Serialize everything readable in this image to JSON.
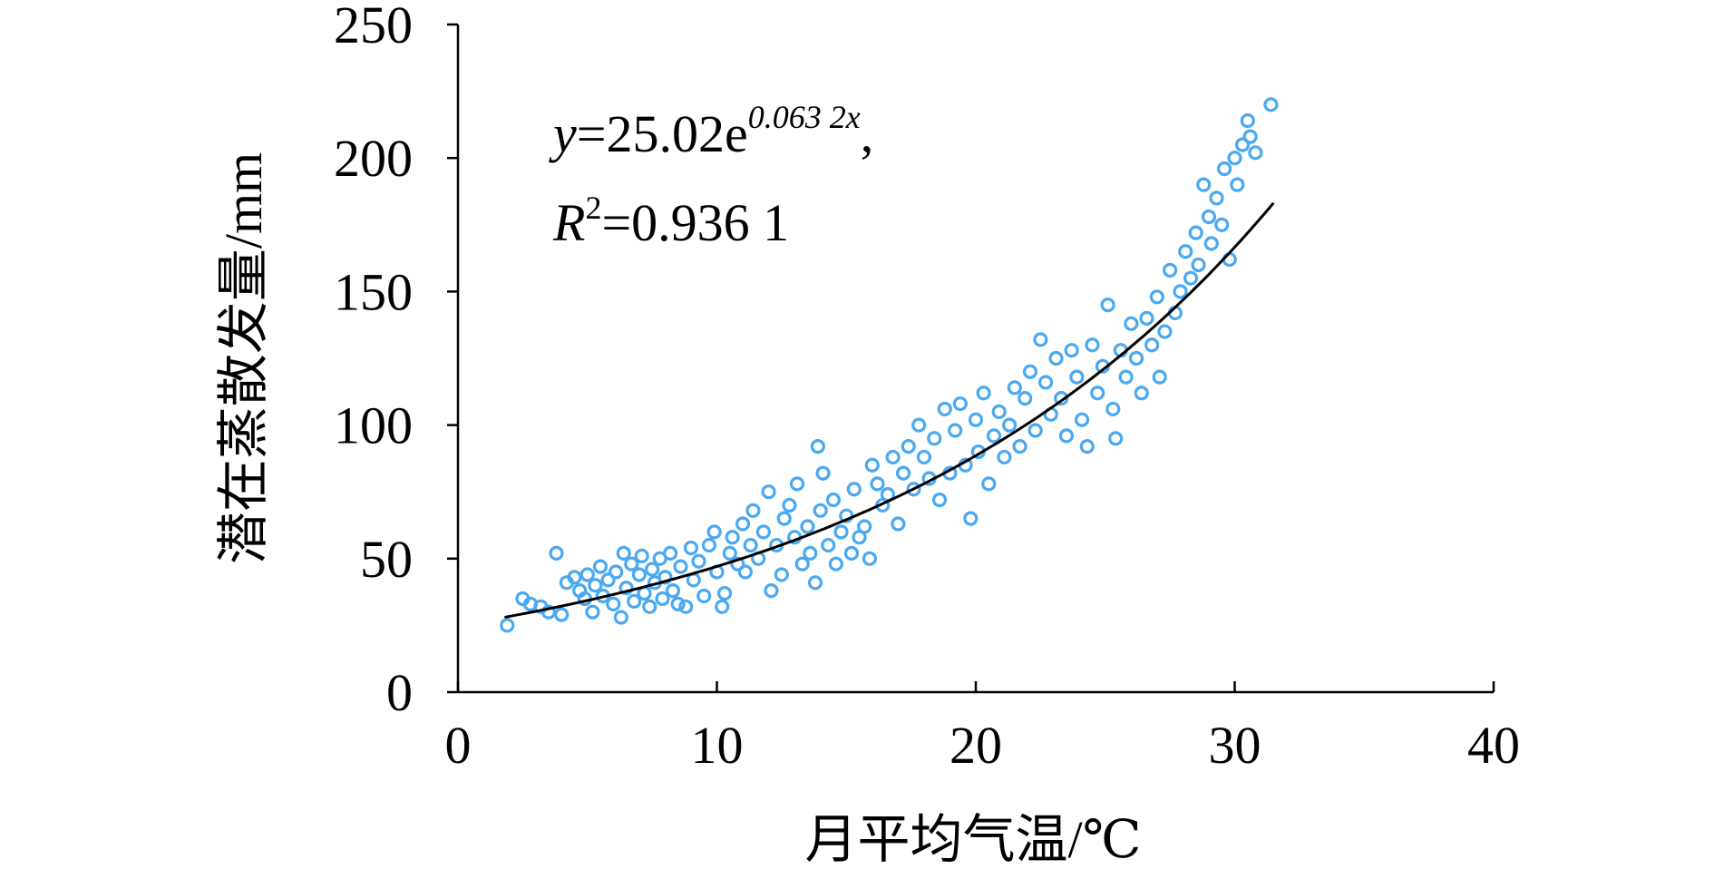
{
  "chart_data": {
    "type": "scatter",
    "title": "",
    "xlabel": "月平均气温/℃",
    "ylabel": "潜在蒸散发量/mm",
    "xlim": [
      0,
      40
    ],
    "ylim": [
      0,
      250
    ],
    "xticks": [
      "0",
      "10",
      "20",
      "30",
      "40"
    ],
    "yticks": [
      "0",
      "50",
      "100",
      "150",
      "200",
      "250"
    ],
    "grid": false,
    "legend": "none",
    "point_color": "#4aa9f0",
    "line_color": "#000000",
    "annotation": {
      "eq_y": "y",
      "eq_main": "=25.02e",
      "eq_exp": "0.063 2x",
      "eq_comma": ",",
      "r_letter": "R",
      "r_sup": "2",
      "r_value": "=0.936 1"
    },
    "fit": {
      "model": "exponential",
      "a": 25.02,
      "b": 0.0632,
      "x_range": [
        1.8,
        31.5
      ]
    },
    "series": [
      {
        "type": "scatter",
        "points": [
          [
            1.9,
            25
          ],
          [
            2.5,
            35
          ],
          [
            2.8,
            33
          ],
          [
            3.2,
            32
          ],
          [
            3.5,
            30
          ],
          [
            3.8,
            52
          ],
          [
            4.0,
            29
          ],
          [
            4.2,
            41
          ],
          [
            4.5,
            43
          ],
          [
            4.7,
            38
          ],
          [
            4.9,
            35
          ],
          [
            5.0,
            44
          ],
          [
            5.2,
            30
          ],
          [
            5.3,
            40
          ],
          [
            5.5,
            47
          ],
          [
            5.6,
            36
          ],
          [
            5.8,
            42
          ],
          [
            6.0,
            33
          ],
          [
            6.1,
            45
          ],
          [
            6.3,
            28
          ],
          [
            6.4,
            52
          ],
          [
            6.5,
            39
          ],
          [
            6.7,
            48
          ],
          [
            6.8,
            34
          ],
          [
            7.0,
            44
          ],
          [
            7.1,
            51
          ],
          [
            7.2,
            37
          ],
          [
            7.4,
            32
          ],
          [
            7.5,
            46
          ],
          [
            7.6,
            41
          ],
          [
            7.8,
            50
          ],
          [
            7.9,
            35
          ],
          [
            8.0,
            43
          ],
          [
            8.2,
            52
          ],
          [
            8.3,
            38
          ],
          [
            8.5,
            33
          ],
          [
            8.6,
            47
          ],
          [
            8.8,
            32
          ],
          [
            9.0,
            54
          ],
          [
            9.1,
            42
          ],
          [
            9.3,
            49
          ],
          [
            9.5,
            36
          ],
          [
            9.7,
            55
          ],
          [
            9.9,
            60
          ],
          [
            10.0,
            45
          ],
          [
            10.2,
            32
          ],
          [
            10.3,
            37
          ],
          [
            10.5,
            52
          ],
          [
            10.6,
            58
          ],
          [
            10.8,
            48
          ],
          [
            11.0,
            63
          ],
          [
            11.1,
            45
          ],
          [
            11.3,
            55
          ],
          [
            11.4,
            68
          ],
          [
            11.6,
            50
          ],
          [
            11.8,
            60
          ],
          [
            12.0,
            75
          ],
          [
            12.1,
            38
          ],
          [
            12.3,
            55
          ],
          [
            12.5,
            44
          ],
          [
            12.6,
            65
          ],
          [
            12.8,
            70
          ],
          [
            13.0,
            58
          ],
          [
            13.1,
            78
          ],
          [
            13.3,
            48
          ],
          [
            13.5,
            62
          ],
          [
            13.6,
            52
          ],
          [
            13.8,
            41
          ],
          [
            13.9,
            92
          ],
          [
            14.0,
            68
          ],
          [
            14.1,
            82
          ],
          [
            14.3,
            55
          ],
          [
            14.5,
            72
          ],
          [
            14.6,
            48
          ],
          [
            14.8,
            60
          ],
          [
            15.0,
            66
          ],
          [
            15.2,
            52
          ],
          [
            15.3,
            76
          ],
          [
            15.5,
            58
          ],
          [
            15.7,
            62
          ],
          [
            15.9,
            50
          ],
          [
            16.0,
            85
          ],
          [
            16.2,
            78
          ],
          [
            16.4,
            70
          ],
          [
            16.6,
            74
          ],
          [
            16.8,
            88
          ],
          [
            17.0,
            63
          ],
          [
            17.2,
            82
          ],
          [
            17.4,
            92
          ],
          [
            17.6,
            76
          ],
          [
            17.8,
            100
          ],
          [
            18.0,
            88
          ],
          [
            18.2,
            80
          ],
          [
            18.4,
            95
          ],
          [
            18.6,
            72
          ],
          [
            18.8,
            106
          ],
          [
            19.0,
            82
          ],
          [
            19.2,
            98
          ],
          [
            19.4,
            108
          ],
          [
            19.6,
            85
          ],
          [
            19.8,
            65
          ],
          [
            20.0,
            102
          ],
          [
            20.1,
            90
          ],
          [
            20.3,
            112
          ],
          [
            20.5,
            78
          ],
          [
            20.7,
            96
          ],
          [
            20.9,
            105
          ],
          [
            21.1,
            88
          ],
          [
            21.3,
            100
          ],
          [
            21.5,
            114
          ],
          [
            21.7,
            92
          ],
          [
            21.9,
            110
          ],
          [
            22.1,
            120
          ],
          [
            22.3,
            98
          ],
          [
            22.5,
            132
          ],
          [
            22.7,
            116
          ],
          [
            22.9,
            104
          ],
          [
            23.1,
            125
          ],
          [
            23.3,
            110
          ],
          [
            23.5,
            96
          ],
          [
            23.7,
            128
          ],
          [
            23.9,
            118
          ],
          [
            24.1,
            102
          ],
          [
            24.3,
            92
          ],
          [
            24.5,
            130
          ],
          [
            24.7,
            112
          ],
          [
            24.9,
            122
          ],
          [
            25.1,
            145
          ],
          [
            25.3,
            106
          ],
          [
            25.4,
            95
          ],
          [
            25.6,
            128
          ],
          [
            25.8,
            118
          ],
          [
            26.0,
            138
          ],
          [
            26.2,
            125
          ],
          [
            26.4,
            112
          ],
          [
            26.6,
            140
          ],
          [
            26.8,
            130
          ],
          [
            27.0,
            148
          ],
          [
            27.1,
            118
          ],
          [
            27.3,
            135
          ],
          [
            27.5,
            158
          ],
          [
            27.7,
            142
          ],
          [
            27.9,
            150
          ],
          [
            28.1,
            165
          ],
          [
            28.3,
            155
          ],
          [
            28.5,
            172
          ],
          [
            28.6,
            160
          ],
          [
            28.8,
            190
          ],
          [
            29.0,
            178
          ],
          [
            29.1,
            168
          ],
          [
            29.3,
            185
          ],
          [
            29.5,
            175
          ],
          [
            29.6,
            196
          ],
          [
            29.8,
            162
          ],
          [
            30.0,
            200
          ],
          [
            30.1,
            190
          ],
          [
            30.3,
            205
          ],
          [
            30.5,
            214
          ],
          [
            30.6,
            208
          ],
          [
            30.8,
            202
          ],
          [
            31.4,
            220
          ]
        ]
      }
    ]
  }
}
